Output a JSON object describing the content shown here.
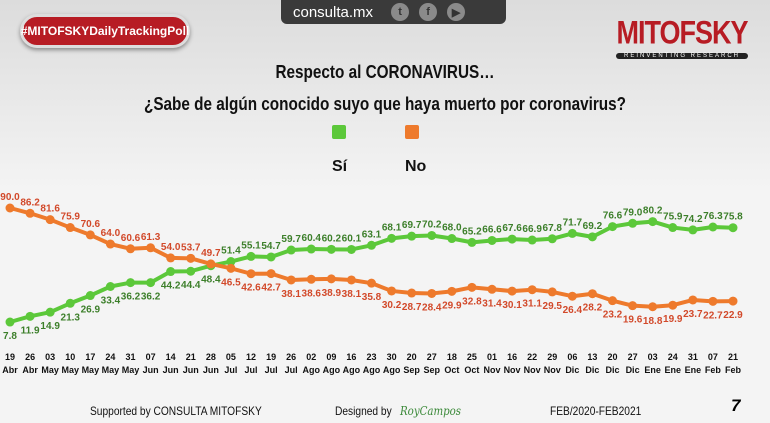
{
  "header": {
    "site": "consulta.mx",
    "hashtag": "#MITOFSKYDailyTrackingPoll",
    "logo": "MITOFSKY",
    "logo_sub": "REINVENTING RESEARCH",
    "title": "Respecto al CORONAVIRUS…",
    "question": "¿Sabe de algún conocido suyo que haya muerto por coronavirus?"
  },
  "footer": {
    "supported": "Supported by  CONSULTA  MITOFSKY",
    "designed": "Designed by",
    "designer": "RoyCampos",
    "period": "FEB/2020-FEB2021",
    "page": "7"
  },
  "chart_data": {
    "type": "line",
    "title": "¿Sabe de algún conocido suyo que haya muerto por coronavirus?",
    "categories": [
      [
        "19",
        "Abr"
      ],
      [
        "26",
        "Abr"
      ],
      [
        "03",
        "May"
      ],
      [
        "10",
        "May"
      ],
      [
        "17",
        "May"
      ],
      [
        "24",
        "May"
      ],
      [
        "31",
        "May"
      ],
      [
        "07",
        "Jun"
      ],
      [
        "14",
        "Jun"
      ],
      [
        "21",
        "Jun"
      ],
      [
        "28",
        "Jun"
      ],
      [
        "05",
        "Jul"
      ],
      [
        "12",
        "Jul"
      ],
      [
        "19",
        "Jul"
      ],
      [
        "26",
        "Jul"
      ],
      [
        "02",
        "Ago"
      ],
      [
        "09",
        "Ago"
      ],
      [
        "16",
        "Ago"
      ],
      [
        "23",
        "Ago"
      ],
      [
        "30",
        "Ago"
      ],
      [
        "20",
        "Sep"
      ],
      [
        "27",
        "Sep"
      ],
      [
        "18",
        "Oct"
      ],
      [
        "25",
        "Oct"
      ],
      [
        "01",
        "Nov"
      ],
      [
        "16",
        "Nov"
      ],
      [
        "22",
        "Nov"
      ],
      [
        "29",
        "Nov"
      ],
      [
        "06",
        "Dic"
      ],
      [
        "13",
        "Dic"
      ],
      [
        "20",
        "Dic"
      ],
      [
        "27",
        "Dic"
      ],
      [
        "03",
        "Ene"
      ],
      [
        "24",
        "Ene"
      ],
      [
        "31",
        "Ene"
      ],
      [
        "07",
        "Feb"
      ],
      [
        "21",
        "Feb"
      ]
    ],
    "series": [
      {
        "name": "Sí",
        "color": "#5cc83a",
        "label_color": "#3c7f2a",
        "values": [
          7.8,
          11.9,
          14.9,
          21.3,
          26.9,
          33.4,
          36.2,
          36.2,
          44.2,
          44.4,
          48.4,
          51.4,
          55.1,
          54.7,
          59.7,
          60.4,
          60.2,
          60.1,
          63.1,
          68.1,
          69.7,
          70.2,
          68.0,
          65.2,
          66.6,
          67.6,
          66.9,
          67.8,
          71.7,
          69.2,
          76.6,
          79.0,
          80.2,
          75.9,
          74.2,
          76.3,
          75.8
        ]
      },
      {
        "name": "No",
        "color": "#ee7a2c",
        "label_color": "#d2492a",
        "values": [
          90.0,
          86.2,
          81.6,
          75.9,
          70.6,
          64.0,
          60.6,
          61.3,
          54.0,
          53.7,
          49.7,
          46.5,
          42.6,
          42.7,
          38.1,
          38.6,
          38.9,
          38.1,
          35.8,
          30.2,
          28.7,
          28.4,
          29.9,
          32.8,
          31.4,
          30.1,
          31.1,
          29.5,
          26.4,
          28.2,
          23.2,
          19.6,
          18.8,
          19.9,
          23.7,
          22.7,
          22.9
        ]
      }
    ],
    "ylim": [
      0,
      100
    ],
    "grid": false,
    "legend": "top-center"
  }
}
